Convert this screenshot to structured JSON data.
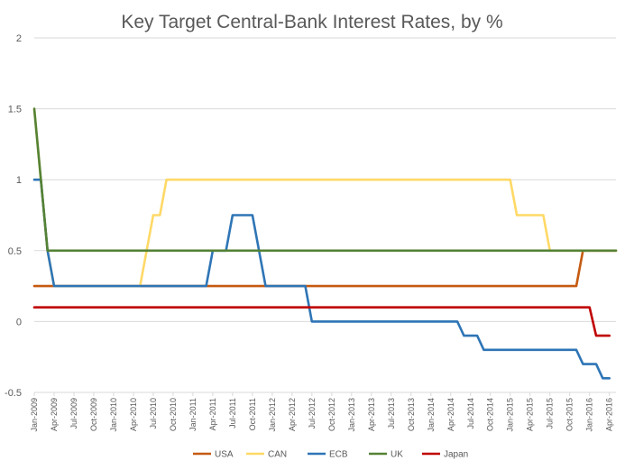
{
  "chart_data": {
    "type": "line",
    "title": "Key Target Central-Bank Interest Rates, by %",
    "xlabel": "",
    "ylabel": "",
    "ylim": [
      -0.5,
      2
    ],
    "yticks": [
      -0.5,
      0,
      0.5,
      1,
      1.5,
      2
    ],
    "xlim": [
      "2009-01",
      "2016-05"
    ],
    "x_tick_labels": [
      "Jan-2009",
      "Apr-2009",
      "Jul-2009",
      "Oct-2009",
      "Jan-2010",
      "Apr-2010",
      "Jul-2010",
      "Oct-2010",
      "Jan-2011",
      "Apr-2011",
      "Jul-2011",
      "Oct-2011",
      "Jan-2012",
      "Apr-2012",
      "Jul-2012",
      "Oct-2012",
      "Jan-2013",
      "Apr-2013",
      "Jul-2013",
      "Oct-2013",
      "Jan-2014",
      "Apr-2014",
      "Jul-2014",
      "Oct-2014",
      "Jan-2015",
      "Apr-2015",
      "Jul-2015",
      "Oct-2015",
      "Jan-2016",
      "Apr-2016"
    ],
    "grid": "horizontal",
    "legend": "bottom",
    "series": [
      {
        "name": "USA",
        "color": "#c55a11",
        "points": [
          [
            "2009-01",
            0.25
          ],
          [
            "2015-11",
            0.25
          ],
          [
            "2015-12",
            0.5
          ],
          [
            "2016-05",
            0.5
          ]
        ]
      },
      {
        "name": "CAN",
        "color": "#ffd966",
        "points": [
          [
            "2009-01",
            1.5
          ],
          [
            "2009-02",
            1.0
          ],
          [
            "2009-03",
            0.5
          ],
          [
            "2009-04",
            0.25
          ],
          [
            "2010-05",
            0.25
          ],
          [
            "2010-06",
            0.5
          ],
          [
            "2010-07",
            0.75
          ],
          [
            "2010-08",
            0.75
          ],
          [
            "2010-09",
            1.0
          ],
          [
            "2015-01",
            1.0
          ],
          [
            "2015-02",
            0.75
          ],
          [
            "2015-06",
            0.75
          ],
          [
            "2015-07",
            0.5
          ],
          [
            "2016-05",
            0.5
          ]
        ]
      },
      {
        "name": "ECB",
        "color": "#2e75b6",
        "points": [
          [
            "2009-01",
            1.0
          ],
          [
            "2009-02",
            1.0
          ],
          [
            "2009-03",
            0.5
          ],
          [
            "2009-04",
            0.25
          ],
          [
            "2011-03",
            0.25
          ],
          [
            "2011-04",
            0.5
          ],
          [
            "2011-06",
            0.5
          ],
          [
            "2011-07",
            0.75
          ],
          [
            "2011-10",
            0.75
          ],
          [
            "2011-11",
            0.5
          ],
          [
            "2011-12",
            0.25
          ],
          [
            "2012-06",
            0.25
          ],
          [
            "2012-07",
            0.0
          ],
          [
            "2014-05",
            0.0
          ],
          [
            "2014-06",
            -0.1
          ],
          [
            "2014-08",
            -0.1
          ],
          [
            "2014-09",
            -0.2
          ],
          [
            "2015-11",
            -0.2
          ],
          [
            "2015-12",
            -0.3
          ],
          [
            "2016-02",
            -0.3
          ],
          [
            "2016-03",
            -0.4
          ],
          [
            "2016-04",
            -0.4
          ]
        ]
      },
      {
        "name": "UK",
        "color": "#548235",
        "points": [
          [
            "2009-01",
            1.5
          ],
          [
            "2009-03",
            0.5
          ],
          [
            "2016-05",
            0.5
          ]
        ]
      },
      {
        "name": "Japan",
        "color": "#c00000",
        "points": [
          [
            "2009-01",
            0.1
          ],
          [
            "2016-01",
            0.1
          ],
          [
            "2016-02",
            -0.1
          ],
          [
            "2016-04",
            -0.1
          ]
        ]
      }
    ]
  }
}
